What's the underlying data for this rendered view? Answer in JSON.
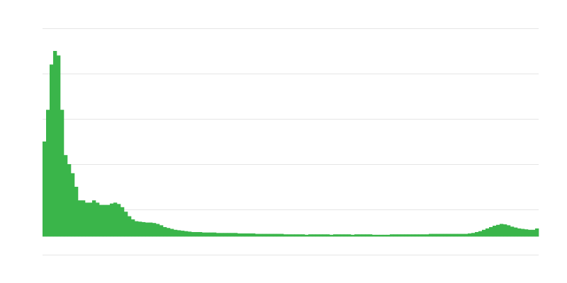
{
  "chart_data": {
    "type": "bar",
    "color": "#3ab54a",
    "grid": true,
    "ylim": [
      -0.4,
      4.6
    ],
    "yticks": [
      -0.4,
      0.6,
      1.6,
      2.6,
      3.6,
      4.6
    ],
    "values": [
      2.1,
      2.8,
      3.8,
      4.1,
      4.0,
      2.8,
      1.8,
      1.6,
      1.4,
      1.1,
      0.8,
      0.8,
      0.75,
      0.75,
      0.8,
      0.75,
      0.7,
      0.7,
      0.7,
      0.73,
      0.75,
      0.72,
      0.65,
      0.55,
      0.45,
      0.38,
      0.34,
      0.33,
      0.32,
      0.31,
      0.31,
      0.3,
      0.28,
      0.25,
      0.21,
      0.19,
      0.17,
      0.15,
      0.14,
      0.13,
      0.12,
      0.11,
      0.1,
      0.1,
      0.1,
      0.09,
      0.09,
      0.09,
      0.09,
      0.08,
      0.08,
      0.08,
      0.08,
      0.08,
      0.08,
      0.07,
      0.07,
      0.07,
      0.07,
      0.07,
      0.06,
      0.06,
      0.06,
      0.06,
      0.06,
      0.06,
      0.06,
      0.06,
      0.05,
      0.05,
      0.05,
      0.05,
      0.05,
      0.05,
      0.04,
      0.05,
      0.05,
      0.05,
      0.05,
      0.05,
      0.05,
      0.04,
      0.05,
      0.05,
      0.05,
      0.05,
      0.05,
      0.04,
      0.05,
      0.05,
      0.05,
      0.05,
      0.05,
      0.04,
      0.04,
      0.04,
      0.04,
      0.04,
      0.05,
      0.05,
      0.05,
      0.05,
      0.05,
      0.05,
      0.05,
      0.05,
      0.05,
      0.05,
      0.05,
      0.06,
      0.06,
      0.06,
      0.06,
      0.06,
      0.06,
      0.06,
      0.06,
      0.06,
      0.06,
      0.06,
      0.07,
      0.08,
      0.1,
      0.12,
      0.15,
      0.18,
      0.21,
      0.24,
      0.26,
      0.28,
      0.27,
      0.25,
      0.22,
      0.2,
      0.18,
      0.17,
      0.16,
      0.15,
      0.15,
      0.18
    ]
  }
}
